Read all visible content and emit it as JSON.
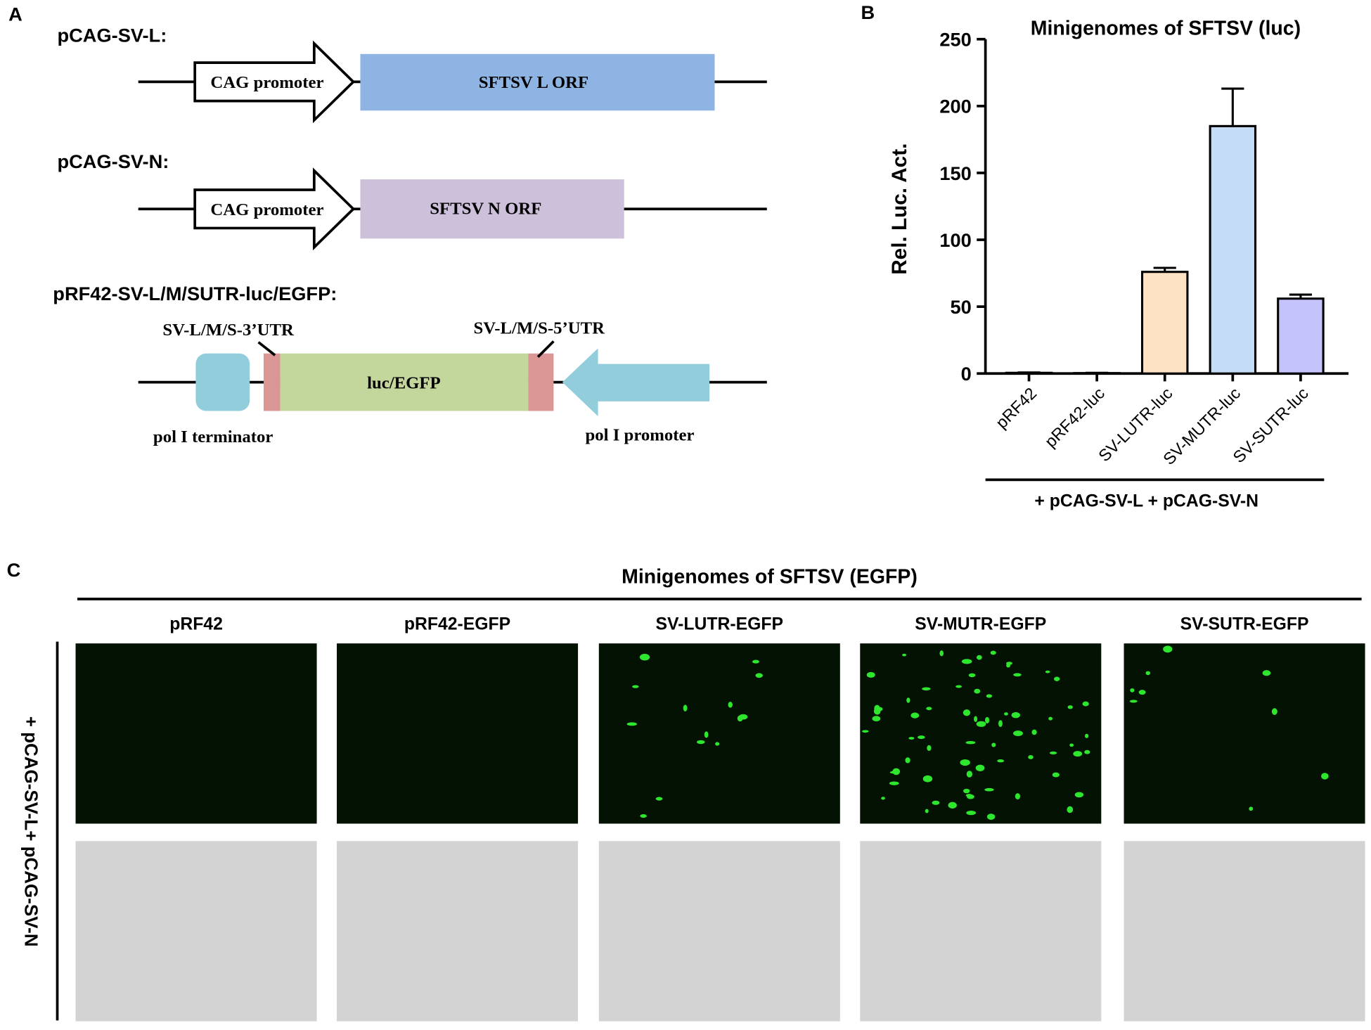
{
  "panel_a": {
    "label": "A",
    "constructs": [
      {
        "title": "pCAG-SV-L:",
        "promoter": "CAG promoter",
        "orf": "SFTSV L ORF"
      },
      {
        "title": "pCAG-SV-N:",
        "promoter": "CAG promoter",
        "orf": "SFTSV N ORF"
      },
      {
        "title": "pRF42-SV-L/M/SUTR-luc/EGFP:",
        "utr3": "SV-L/M/S-3’UTR",
        "utr5": "SV-L/M/S-5’UTR",
        "reporter": "luc/EGFP",
        "terminator": "pol I terminator",
        "promoter": "pol I promoter"
      }
    ]
  },
  "chart_data": {
    "type": "bar",
    "panel_label": "B",
    "title": "Minigenomes of SFTSV (luc)",
    "y_label": "Rel. Luc. Act.",
    "categories": [
      "pRF42",
      "pRF42-luc",
      "SV-LUTR-luc",
      "SV-MUTR-luc",
      "SV-SUTR-luc"
    ],
    "values": [
      0.5,
      0.3,
      76,
      185,
      56
    ],
    "errors": [
      0.3,
      0.2,
      3,
      28,
      3
    ],
    "colors": [
      "#ffffff",
      "#ffffff",
      "#fde3c4",
      "#c5dcf6",
      "#c4c4fb"
    ],
    "ylim": [
      0,
      250
    ],
    "yticks": [
      0,
      50,
      100,
      150,
      200,
      250
    ],
    "group_label": "+ pCAG-SV-L + pCAG-SV-N"
  },
  "panel_c": {
    "label": "C",
    "title": "Minigenomes of SFTSV (EGFP)",
    "columns": [
      "pRF42",
      "pRF42-EGFP",
      "SV-LUTR-EGFP",
      "SV-MUTR-EGFP",
      "SV-SUTR-EGFP"
    ],
    "row_label": "+ pCAG-SV-L+ pCAG-SV-N"
  }
}
